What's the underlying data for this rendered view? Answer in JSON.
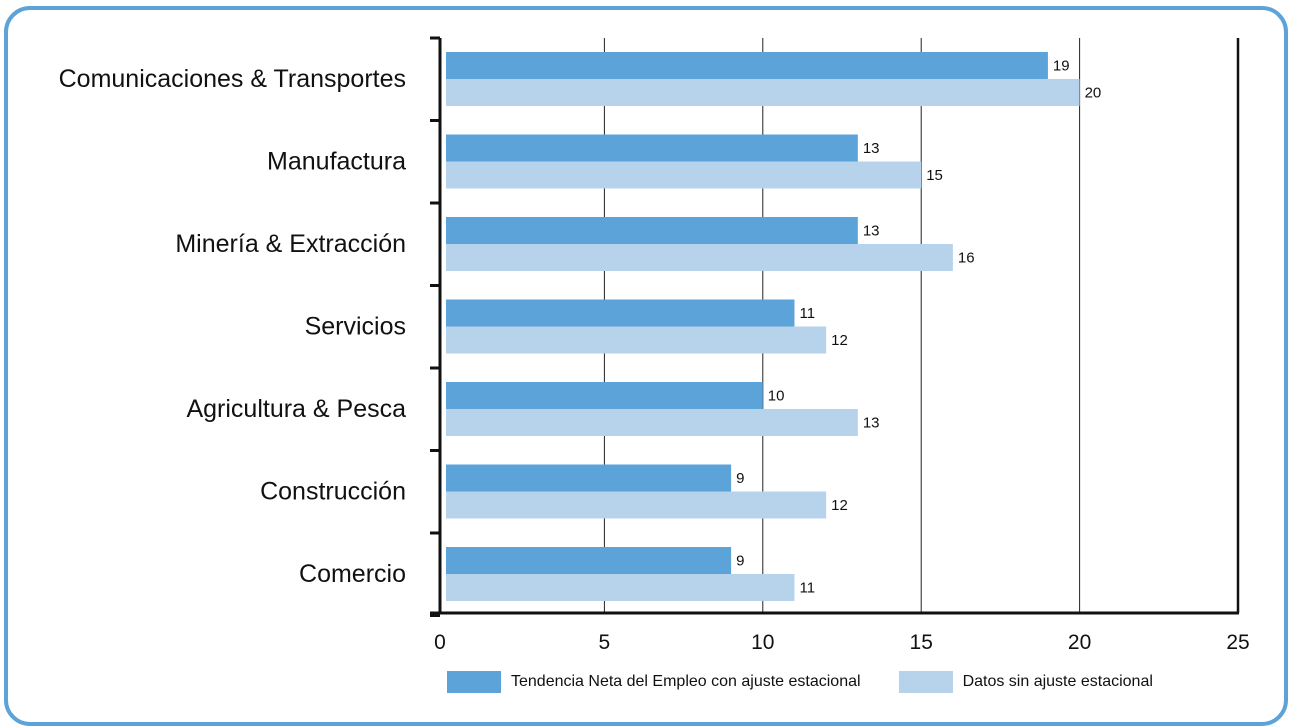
{
  "chart_data": {
    "type": "bar",
    "orientation": "horizontal",
    "categories": [
      "Comunicaciones & Transportes",
      "Manufactura",
      "Minería & Extracción",
      "Servicios",
      "Agricultura & Pesca",
      "Construcción",
      "Comercio"
    ],
    "series": [
      {
        "name": "Tendencia Neta del Empleo con ajuste estacional",
        "color": "#5ba3d9",
        "values": [
          19,
          13,
          13,
          11,
          10,
          9,
          9
        ]
      },
      {
        "name": "Datos sin ajuste estacional",
        "color": "#b7d3ec",
        "values": [
          20,
          15,
          16,
          12,
          13,
          12,
          11
        ]
      }
    ],
    "xlim": [
      0,
      25
    ],
    "xticks": [
      0,
      5,
      10,
      15,
      20,
      25
    ],
    "grid": true,
    "legend_position": "bottom",
    "title": "",
    "xlabel": "",
    "ylabel": ""
  }
}
